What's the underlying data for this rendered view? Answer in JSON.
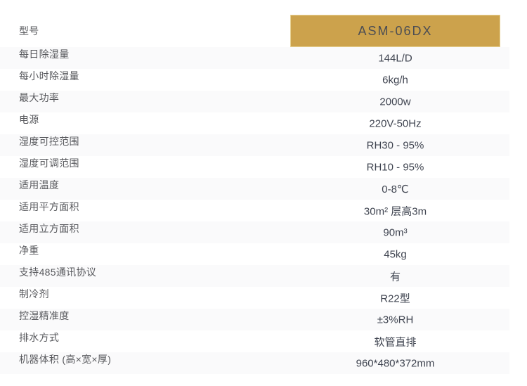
{
  "theme": {
    "accent_gold": "#cca24c",
    "alt_row_color": "#fafafb",
    "label_color": "#57585c",
    "value_color": "#3f4450",
    "model_text_color": "#4b4d54"
  },
  "table": {
    "model_row": {
      "label": "型号",
      "value": "ASM-06DX"
    },
    "rows": [
      {
        "label": "每日除湿量",
        "value": "144L/D"
      },
      {
        "label": "每小时除湿量",
        "value": "6kg/h"
      },
      {
        "label": "最大功率",
        "value": "2000w"
      },
      {
        "label": "电源",
        "value": "220V-50Hz"
      },
      {
        "label": "湿度可控范围",
        "value": "RH30 - 95%"
      },
      {
        "label": "湿度可调范围",
        "value": "RH10 - 95%"
      },
      {
        "label": "适用温度",
        "value": "0-8℃"
      },
      {
        "label": "适用平方面积",
        "value": "30m² 层高3m"
      },
      {
        "label": "适用立方面积",
        "value": "90m³"
      },
      {
        "label": "净重",
        "value": "45kg"
      },
      {
        "label": "支持485通讯协议",
        "value": "有"
      },
      {
        "label": "制冷剂",
        "value": "R22型"
      },
      {
        "label": "控湿精准度",
        "value": "±3%RH"
      },
      {
        "label": "排水方式",
        "value": "软管直排"
      },
      {
        "label": "机器体积 (高×宽×厚)",
        "value": "960*480*372mm"
      }
    ]
  }
}
